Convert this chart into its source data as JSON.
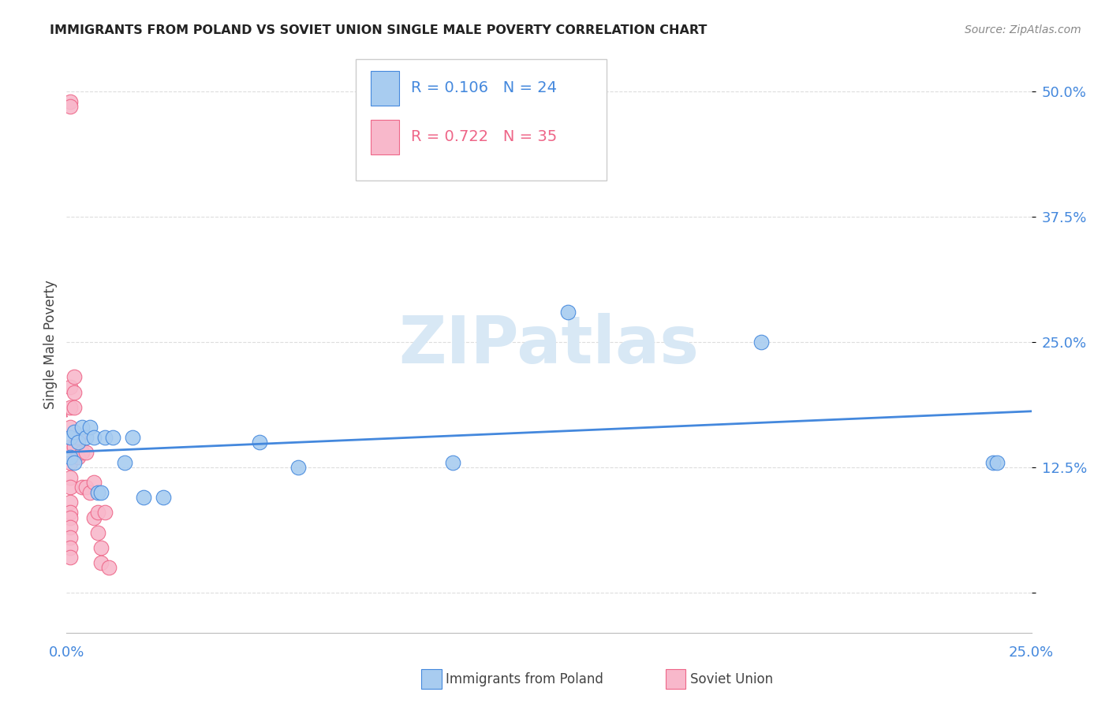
{
  "title": "IMMIGRANTS FROM POLAND VS SOVIET UNION SINGLE MALE POVERTY CORRELATION CHART",
  "source": "Source: ZipAtlas.com",
  "ylabel": "Single Male Poverty",
  "ytick_values": [
    0.0,
    0.125,
    0.25,
    0.375,
    0.5
  ],
  "ytick_labels": [
    "",
    "12.5%",
    "25.0%",
    "37.5%",
    "50.0%"
  ],
  "xlim": [
    0.0,
    0.25
  ],
  "ylim": [
    -0.04,
    0.535
  ],
  "poland_R": 0.106,
  "poland_N": 24,
  "soviet_R": 0.722,
  "soviet_N": 35,
  "poland_color": "#A8CCF0",
  "soviet_color": "#F8B8CB",
  "poland_line_color": "#4488DD",
  "soviet_line_color": "#EE6688",
  "poland_x": [
    0.001,
    0.001,
    0.002,
    0.002,
    0.003,
    0.004,
    0.005,
    0.006,
    0.007,
    0.008,
    0.009,
    0.01,
    0.012,
    0.015,
    0.017,
    0.02,
    0.025,
    0.05,
    0.06,
    0.1,
    0.13,
    0.18,
    0.24,
    0.241
  ],
  "poland_y": [
    0.155,
    0.135,
    0.16,
    0.13,
    0.15,
    0.165,
    0.155,
    0.165,
    0.155,
    0.1,
    0.1,
    0.155,
    0.155,
    0.13,
    0.155,
    0.095,
    0.095,
    0.15,
    0.125,
    0.13,
    0.28,
    0.25,
    0.13,
    0.13
  ],
  "soviet_x": [
    0.001,
    0.001,
    0.001,
    0.001,
    0.001,
    0.001,
    0.001,
    0.001,
    0.001,
    0.001,
    0.001,
    0.001,
    0.001,
    0.001,
    0.001,
    0.001,
    0.002,
    0.002,
    0.002,
    0.002,
    0.003,
    0.003,
    0.004,
    0.004,
    0.005,
    0.005,
    0.006,
    0.007,
    0.007,
    0.008,
    0.008,
    0.009,
    0.009,
    0.01,
    0.011
  ],
  "soviet_y": [
    0.49,
    0.485,
    0.205,
    0.185,
    0.165,
    0.145,
    0.13,
    0.115,
    0.105,
    0.09,
    0.08,
    0.075,
    0.065,
    0.055,
    0.045,
    0.035,
    0.215,
    0.2,
    0.185,
    0.145,
    0.155,
    0.135,
    0.14,
    0.105,
    0.14,
    0.105,
    0.1,
    0.11,
    0.075,
    0.08,
    0.06,
    0.045,
    0.03,
    0.08,
    0.025
  ],
  "watermark": "ZIPatlas",
  "watermark_color": "#D8E8F5",
  "background_color": "#FFFFFF",
  "grid_color": "#DDDDDD"
}
